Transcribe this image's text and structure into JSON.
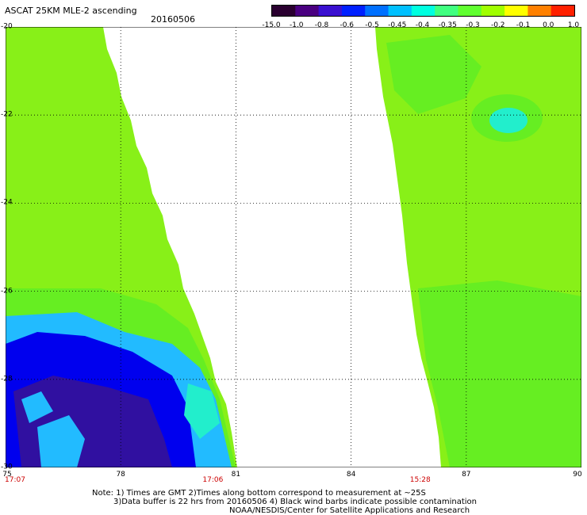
{
  "header": {
    "title": "ASCAT 25KM MLE-2 ascending",
    "date": "20160506"
  },
  "colorbar": {
    "labels": [
      "-15.0",
      "-1.0",
      "-0.8",
      "-0.6",
      "-0.5",
      "-0.45",
      "-0.4",
      "-0.35",
      "-0.3",
      "-0.2",
      "-0.1",
      "0.0",
      "1.0"
    ],
    "colors": [
      "#2a0030",
      "#4a0080",
      "#3a10d0",
      "#0020ff",
      "#0070ff",
      "#00c0ff",
      "#00ffe0",
      "#40ff80",
      "#60ff30",
      "#a0ff00",
      "#ffff00",
      "#ff8000",
      "#ff2000"
    ]
  },
  "map": {
    "lon_range": [
      75,
      90
    ],
    "lat_range": [
      -20,
      -30
    ],
    "lon_ticks": [
      "75",
      "78",
      "81",
      "84",
      "87",
      "90"
    ],
    "lat_ticks": [
      "-20",
      "-22",
      "-24",
      "-26",
      "-28",
      "-30"
    ],
    "lon_values": [
      75,
      78,
      81,
      84,
      87,
      90
    ],
    "lat_values": [
      -20,
      -22,
      -24,
      -26,
      -28,
      -30
    ],
    "swath_colors": {
      "background": "#88f018",
      "green": "#66ee22",
      "cyan": "#22eecc",
      "light_blue": "#22bbff",
      "blue": "#0000ee",
      "dark_blue": "#3010a0"
    }
  },
  "time_labels": [
    {
      "text": "17:07",
      "lon": 75
    },
    {
      "text": "17:06",
      "lon": 80.4
    },
    {
      "text": "15:28",
      "lon": 85.8
    }
  ],
  "notes": {
    "line1": "Note: 1) Times are GMT 2)Times along bottom correspond to measurement at ~25S",
    "line2": "3)Data buffer is 22 hrs from 20160506 4) Black wind barbs indicate possible contamination",
    "line3": "NOAA/NESDIS/Center for Satellite Applications and Research"
  }
}
